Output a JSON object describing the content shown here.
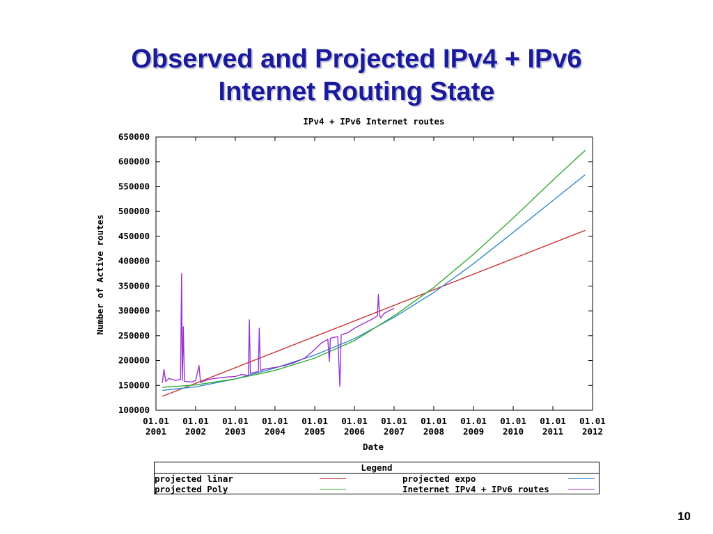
{
  "slide": {
    "title_line1": "Observed and Projected IPv4 + IPv6",
    "title_line2": "Internet Routing State",
    "page_number": "10",
    "title_color": "#1a1a9c"
  },
  "chart_data": {
    "type": "line",
    "title": "IPv4 + IPv6 Internet routes",
    "xlabel": "Date",
    "ylabel": "Number of Active routes",
    "xlim": [
      "2001-01-01",
      "2012-01-01"
    ],
    "ylim": [
      100000,
      650000
    ],
    "x_ticks": [
      {
        "date": "2001-01-01",
        "line1": "01.01",
        "line2": "2001"
      },
      {
        "date": "2002-01-01",
        "line1": "01.01",
        "line2": "2002"
      },
      {
        "date": "2003-01-01",
        "line1": "01.01",
        "line2": "2003"
      },
      {
        "date": "2004-01-01",
        "line1": "01.01",
        "line2": "2004"
      },
      {
        "date": "2005-01-01",
        "line1": "01.01",
        "line2": "2005"
      },
      {
        "date": "2006-01-01",
        "line1": "01.01",
        "line2": "2006"
      },
      {
        "date": "2007-01-01",
        "line1": "01.01",
        "line2": "2007"
      },
      {
        "date": "2008-01-01",
        "line1": "01.01",
        "line2": "2008"
      },
      {
        "date": "2009-01-01",
        "line1": "01.01",
        "line2": "2009"
      },
      {
        "date": "2010-01-01",
        "line1": "01.01",
        "line2": "2010"
      },
      {
        "date": "2011-01-01",
        "line1": "01.01",
        "line2": "2011"
      },
      {
        "date": "2012-01-01",
        "line1": "01.01",
        "line2": "2012"
      }
    ],
    "y_ticks": [
      {
        "value": 100000,
        "label": "100000"
      },
      {
        "value": 150000,
        "label": "150000"
      },
      {
        "value": 200000,
        "label": "200000"
      },
      {
        "value": 250000,
        "label": "250000"
      },
      {
        "value": 300000,
        "label": "300000"
      },
      {
        "value": 350000,
        "label": "350000"
      },
      {
        "value": 400000,
        "label": "400000"
      },
      {
        "value": 450000,
        "label": "450000"
      },
      {
        "value": 500000,
        "label": "500000"
      },
      {
        "value": 550000,
        "label": "550000"
      },
      {
        "value": 600000,
        "label": "600000"
      },
      {
        "value": 650000,
        "label": "650000"
      }
    ],
    "series": [
      {
        "name": "projected linar",
        "color": "#cc3333",
        "points": [
          [
            "2001-03-01",
            128000
          ],
          [
            "2011-10-25",
            462000
          ]
        ]
      },
      {
        "name": "projected expo",
        "color": "#3388cc",
        "points": [
          [
            "2001-03-01",
            140000
          ],
          [
            "2002-01-01",
            147000
          ],
          [
            "2003-01-01",
            163000
          ],
          [
            "2004-01-01",
            185000
          ],
          [
            "2005-01-01",
            211000
          ],
          [
            "2006-01-01",
            244000
          ],
          [
            "2007-01-01",
            287000
          ],
          [
            "2008-01-01",
            337000
          ],
          [
            "2009-01-01",
            395000
          ],
          [
            "2010-01-01",
            458000
          ],
          [
            "2011-01-01",
            522000
          ],
          [
            "2011-10-25",
            574000
          ]
        ]
      },
      {
        "name": "projected Poly",
        "color": "#33aa33",
        "points": [
          [
            "2001-03-01",
            146000
          ],
          [
            "2002-01-01",
            151000
          ],
          [
            "2003-01-01",
            163000
          ],
          [
            "2004-01-01",
            180000
          ],
          [
            "2005-01-01",
            205000
          ],
          [
            "2006-01-01",
            240000
          ],
          [
            "2007-01-01",
            290000
          ],
          [
            "2008-01-01",
            347000
          ],
          [
            "2009-01-01",
            414000
          ],
          [
            "2010-01-01",
            487000
          ],
          [
            "2011-01-01",
            563000
          ],
          [
            "2011-10-25",
            623000
          ]
        ]
      },
      {
        "name": "Ineternet IPv4 + IPv6 routes",
        "color": "#9933cc",
        "points": [
          [
            "2001-03-01",
            155000
          ],
          [
            "2001-03-15",
            182000
          ],
          [
            "2001-04-01",
            158000
          ],
          [
            "2001-05-01",
            164000
          ],
          [
            "2001-07-01",
            160000
          ],
          [
            "2001-08-15",
            162000
          ],
          [
            "2001-08-25",
            375000
          ],
          [
            "2001-09-01",
            160000
          ],
          [
            "2001-09-10",
            268000
          ],
          [
            "2001-09-20",
            158000
          ],
          [
            "2001-12-01",
            157000
          ],
          [
            "2002-01-01",
            160000
          ],
          [
            "2002-02-01",
            190000
          ],
          [
            "2002-02-15",
            156000
          ],
          [
            "2002-05-01",
            162000
          ],
          [
            "2002-09-01",
            166000
          ],
          [
            "2003-01-01",
            168000
          ],
          [
            "2003-03-01",
            172000
          ],
          [
            "2003-05-01",
            170000
          ],
          [
            "2003-05-10",
            282000
          ],
          [
            "2003-05-20",
            174000
          ],
          [
            "2003-08-01",
            178000
          ],
          [
            "2003-08-10",
            265000
          ],
          [
            "2003-08-20",
            180000
          ],
          [
            "2003-10-01",
            183000
          ],
          [
            "2004-01-01",
            186000
          ],
          [
            "2004-04-01",
            190000
          ],
          [
            "2004-07-01",
            196000
          ],
          [
            "2004-10-01",
            205000
          ],
          [
            "2005-01-01",
            222000
          ],
          [
            "2005-03-01",
            235000
          ],
          [
            "2005-05-01",
            243000
          ],
          [
            "2005-05-15",
            198000
          ],
          [
            "2005-05-25",
            245000
          ],
          [
            "2005-08-01",
            248000
          ],
          [
            "2005-08-20",
            148000
          ],
          [
            "2005-09-01",
            252000
          ],
          [
            "2005-11-01",
            256000
          ],
          [
            "2006-01-01",
            265000
          ],
          [
            "2006-03-01",
            272000
          ],
          [
            "2006-06-01",
            282000
          ],
          [
            "2006-08-01",
            290000
          ],
          [
            "2006-08-10",
            333000
          ],
          [
            "2006-08-20",
            292000
          ],
          [
            "2006-09-01",
            286000
          ],
          [
            "2006-10-01",
            295000
          ],
          [
            "2006-12-01",
            302000
          ],
          [
            "2007-01-01",
            305000
          ]
        ]
      }
    ],
    "legend": {
      "title": "Legend",
      "entries": [
        {
          "label": "projected linar",
          "color": "#cc3333"
        },
        {
          "label": "projected expo",
          "color": "#3388cc"
        },
        {
          "label": "projected Poly",
          "color": "#33aa33"
        },
        {
          "label": "Ineternet IPv4 + IPv6 routes",
          "color": "#9933cc"
        }
      ]
    },
    "grid": false,
    "legend_placement": "bottom"
  }
}
